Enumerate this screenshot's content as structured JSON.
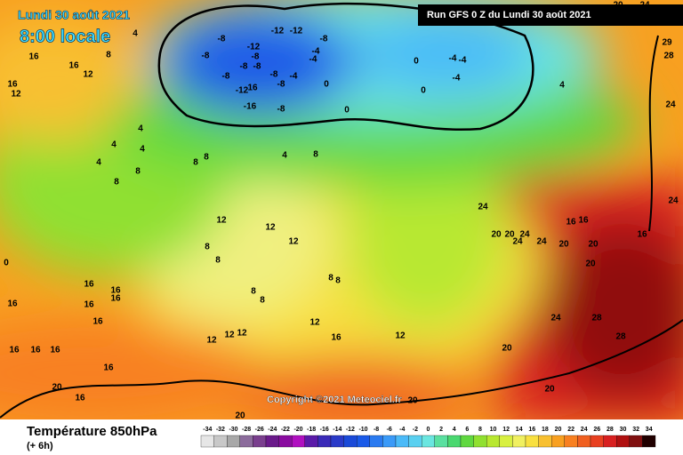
{
  "header": {
    "date": "Lundi 30 août 2021",
    "time": "8:00 locale",
    "run": "Run GFS 0 Z du Lundi 30 août 2021"
  },
  "copyright": "Copyright ©2021 Meteociel.fr",
  "footer": {
    "title": "Température 850hPa",
    "lead": "(+ 6h)"
  },
  "legend": {
    "values": [
      -34,
      -32,
      -30,
      -28,
      -26,
      -24,
      -22,
      -20,
      -18,
      -16,
      -14,
      -12,
      -10,
      -8,
      -6,
      -4,
      -2,
      0,
      2,
      4,
      6,
      8,
      10,
      12,
      14,
      16,
      18,
      20,
      22,
      24,
      26,
      28,
      30,
      32,
      34
    ],
    "colors": [
      "#e6e6e6",
      "#c8c8c8",
      "#a8a8a8",
      "#8c6c9c",
      "#7a3f8e",
      "#6a1a8a",
      "#8a0ca0",
      "#b010c0",
      "#5a1aa8",
      "#3a2ab8",
      "#2a3ac8",
      "#1a4ad8",
      "#1a5ae8",
      "#2a7af0",
      "#3a9af8",
      "#4abaf8",
      "#5ad0f0",
      "#6ae6e0",
      "#5ae0a0",
      "#4ad870",
      "#60d840",
      "#90e030",
      "#b8e830",
      "#d8f040",
      "#f0f060",
      "#f8e040",
      "#f8c030",
      "#f8a020",
      "#f88020",
      "#f06020",
      "#e84020",
      "#d82020",
      "#b01010",
      "#801010",
      "#200000"
    ]
  },
  "contour_labels": [
    "-8",
    "-12",
    "-12",
    "-8",
    "-12",
    "-4",
    "-8",
    "-8",
    "-4",
    "-8",
    "-8",
    "-8",
    "-4",
    "-8",
    "-12",
    "16",
    "-8",
    "-16",
    "-8",
    "0",
    "0",
    "0",
    "-4",
    "-4",
    "-4",
    "0",
    "4",
    "4",
    "8",
    "12",
    "16",
    "16",
    "16",
    "12",
    "4",
    "4",
    "4",
    "4",
    "8",
    "8",
    "8",
    "8",
    "4",
    "8",
    "12",
    "12",
    "12",
    "8",
    "8",
    "8",
    "8",
    "8",
    "8",
    "12",
    "16",
    "12",
    "12",
    "12",
    "12",
    "16",
    "16",
    "16",
    "16",
    "16",
    "16",
    "16",
    "16",
    "16",
    "16",
    "20",
    "20",
    "16",
    "24",
    "20",
    "20",
    "20",
    "24",
    "28",
    "28",
    "20",
    "20",
    "20",
    "24",
    "24",
    "24",
    "20",
    "20",
    "16",
    "16",
    "16",
    "24",
    "29",
    "28",
    "24",
    "0",
    "20",
    "24"
  ]
}
